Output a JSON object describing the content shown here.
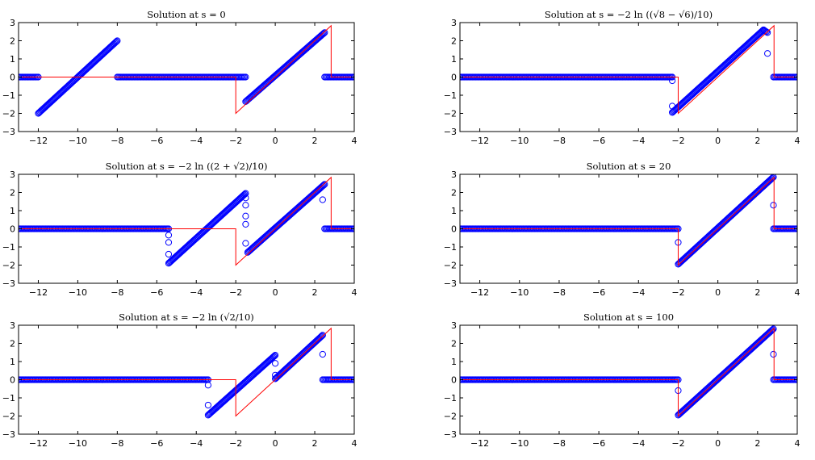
{
  "chart_data": [
    {
      "type": "scatter",
      "title": "Solution at s = 0",
      "xlim": [
        -13,
        4
      ],
      "ylim": [
        -3,
        3
      ],
      "xticks": [
        -12,
        -10,
        -8,
        -6,
        -4,
        -2,
        0,
        2,
        4
      ],
      "yticks": [
        -3,
        -2,
        -1,
        0,
        1,
        2,
        3
      ],
      "grid": false,
      "series": [
        {
          "kind": "line",
          "color": "#ff0000",
          "x": [
            -13,
            -12,
            -12,
            -2,
            -2,
            2.83,
            2.83,
            4
          ],
          "y": [
            0,
            0,
            0,
            0,
            -2,
            2.83,
            0,
            0
          ]
        },
        {
          "kind": "markers",
          "color": "#0000ff",
          "segments": [
            {
              "x": [
                -13,
                -12
              ],
              "y": [
                0,
                0
              ]
            },
            {
              "x": [
                -12,
                -8
              ],
              "y": [
                -2,
                2
              ]
            },
            {
              "x": [
                -8,
                -1.5
              ],
              "y": [
                0,
                0
              ]
            },
            {
              "x": [
                -1.5,
                2.5
              ],
              "y": [
                -1.35,
                2.45
              ]
            },
            {
              "x": [
                2.5,
                4
              ],
              "y": [
                0,
                0
              ]
            }
          ],
          "points": []
        }
      ]
    },
    {
      "type": "scatter",
      "title": "Solution at s = −2 ln ((√8 − √6)/10)",
      "xlim": [
        -13,
        4
      ],
      "ylim": [
        -3,
        3
      ],
      "xticks": [
        -12,
        -10,
        -8,
        -6,
        -4,
        -2,
        0,
        2,
        4
      ],
      "yticks": [
        -3,
        -2,
        -1,
        0,
        1,
        2,
        3
      ],
      "grid": false,
      "series": [
        {
          "kind": "line",
          "color": "#ff0000",
          "x": [
            -13,
            -2,
            -2,
            2.83,
            2.83,
            4
          ],
          "y": [
            0,
            0,
            -2,
            2.83,
            0,
            0
          ]
        },
        {
          "kind": "markers",
          "color": "#0000ff",
          "segments": [
            {
              "x": [
                -13,
                -2.3
              ],
              "y": [
                0,
                0
              ]
            },
            {
              "x": [
                -2.3,
                2.3
              ],
              "y": [
                -1.95,
                2.6
              ]
            },
            {
              "x": [
                2.3,
                2.5
              ],
              "y": [
                2.6,
                2.45
              ]
            },
            {
              "x": [
                2.8,
                4
              ],
              "y": [
                0,
                0
              ]
            }
          ],
          "points": [
            {
              "x": -2.3,
              "y": -0.2
            },
            {
              "x": -2.3,
              "y": -1.6
            },
            {
              "x": 2.5,
              "y": 1.3
            }
          ]
        }
      ]
    },
    {
      "type": "scatter",
      "title": "Solution at s = −2 ln ((2 + √2)/10)",
      "xlim": [
        -13,
        4
      ],
      "ylim": [
        -3,
        3
      ],
      "xticks": [
        -12,
        -10,
        -8,
        -6,
        -4,
        -2,
        0,
        2,
        4
      ],
      "yticks": [
        -3,
        -2,
        -1,
        0,
        1,
        2,
        3
      ],
      "grid": false,
      "series": [
        {
          "kind": "line",
          "color": "#ff0000",
          "x": [
            -13,
            -2,
            -2,
            2.83,
            2.83,
            4
          ],
          "y": [
            0,
            0,
            -2,
            2.83,
            0,
            0
          ]
        },
        {
          "kind": "markers",
          "color": "#0000ff",
          "segments": [
            {
              "x": [
                -13,
                -5.4
              ],
              "y": [
                0,
                0
              ]
            },
            {
              "x": [
                -5.4,
                -1.5
              ],
              "y": [
                -1.9,
                1.95
              ]
            },
            {
              "x": [
                -1.4,
                2.5
              ],
              "y": [
                -1.3,
                2.45
              ]
            },
            {
              "x": [
                2.5,
                4
              ],
              "y": [
                0,
                0
              ]
            }
          ],
          "points": [
            {
              "x": -5.4,
              "y": -0.35
            },
            {
              "x": -5.4,
              "y": -0.75
            },
            {
              "x": -5.4,
              "y": -1.4
            },
            {
              "x": -1.5,
              "y": 1.7
            },
            {
              "x": -1.5,
              "y": 1.3
            },
            {
              "x": -1.5,
              "y": 0.7
            },
            {
              "x": -1.5,
              "y": 0.25
            },
            {
              "x": -1.5,
              "y": -0.8
            },
            {
              "x": 2.4,
              "y": 1.6
            }
          ]
        }
      ]
    },
    {
      "type": "scatter",
      "title": "Solution at s = 20",
      "xlim": [
        -13,
        4
      ],
      "ylim": [
        -3,
        3
      ],
      "xticks": [
        -12,
        -10,
        -8,
        -6,
        -4,
        -2,
        0,
        2,
        4
      ],
      "yticks": [
        -3,
        -2,
        -1,
        0,
        1,
        2,
        3
      ],
      "grid": false,
      "series": [
        {
          "kind": "line",
          "color": "#ff0000",
          "x": [
            -13,
            -2,
            -2,
            2.83,
            2.83,
            4
          ],
          "y": [
            0,
            0,
            -2,
            2.83,
            0,
            0
          ]
        },
        {
          "kind": "markers",
          "color": "#0000ff",
          "segments": [
            {
              "x": [
                -13,
                -2
              ],
              "y": [
                0,
                0
              ]
            },
            {
              "x": [
                -2,
                2.8
              ],
              "y": [
                -1.95,
                2.85
              ]
            },
            {
              "x": [
                2.8,
                4
              ],
              "y": [
                0,
                0
              ]
            }
          ],
          "points": [
            {
              "x": -2,
              "y": -0.75
            },
            {
              "x": 2.8,
              "y": 1.3
            }
          ]
        }
      ]
    },
    {
      "type": "scatter",
      "title": "Solution at s = −2 ln (√2/10)",
      "xlim": [
        -13,
        4
      ],
      "ylim": [
        -3,
        3
      ],
      "xticks": [
        -12,
        -10,
        -8,
        -6,
        -4,
        -2,
        0,
        2,
        4
      ],
      "yticks": [
        -3,
        -2,
        -1,
        0,
        1,
        2,
        3
      ],
      "grid": false,
      "series": [
        {
          "kind": "line",
          "color": "#ff0000",
          "x": [
            -13,
            -2,
            -2,
            2.83,
            2.83,
            4
          ],
          "y": [
            0,
            0,
            -2,
            2.83,
            0,
            0
          ]
        },
        {
          "kind": "markers",
          "color": "#0000ff",
          "segments": [
            {
              "x": [
                -13,
                -3.4
              ],
              "y": [
                0,
                0
              ]
            },
            {
              "x": [
                -3.4,
                0
              ],
              "y": [
                -1.95,
                1.35
              ]
            },
            {
              "x": [
                0,
                2.4
              ],
              "y": [
                0.05,
                2.45
              ]
            },
            {
              "x": [
                2.4,
                4
              ],
              "y": [
                0,
                0
              ]
            }
          ],
          "points": [
            {
              "x": -3.4,
              "y": -0.3
            },
            {
              "x": -3.4,
              "y": -1.4
            },
            {
              "x": 0,
              "y": 0.9
            },
            {
              "x": 0,
              "y": 0.25
            },
            {
              "x": 2.4,
              "y": 1.4
            }
          ]
        }
      ]
    },
    {
      "type": "scatter",
      "title": "Solution at s = 100",
      "xlim": [
        -13,
        4
      ],
      "ylim": [
        -3,
        3
      ],
      "xticks": [
        -12,
        -10,
        -8,
        -6,
        -4,
        -2,
        0,
        2,
        4
      ],
      "yticks": [
        -3,
        -2,
        -1,
        0,
        1,
        2,
        3
      ],
      "grid": false,
      "series": [
        {
          "kind": "line",
          "color": "#ff0000",
          "x": [
            -13,
            -2,
            -2,
            2.83,
            2.83,
            4
          ],
          "y": [
            0,
            0,
            -2,
            2.83,
            0,
            0
          ]
        },
        {
          "kind": "markers",
          "color": "#0000ff",
          "segments": [
            {
              "x": [
                -13,
                -2
              ],
              "y": [
                0,
                0
              ]
            },
            {
              "x": [
                -2,
                2.8
              ],
              "y": [
                -1.95,
                2.8
              ]
            },
            {
              "x": [
                2.8,
                4
              ],
              "y": [
                0,
                0
              ]
            }
          ],
          "points": [
            {
              "x": -2,
              "y": -0.6
            },
            {
              "x": 2.8,
              "y": 1.4
            }
          ]
        }
      ]
    }
  ]
}
